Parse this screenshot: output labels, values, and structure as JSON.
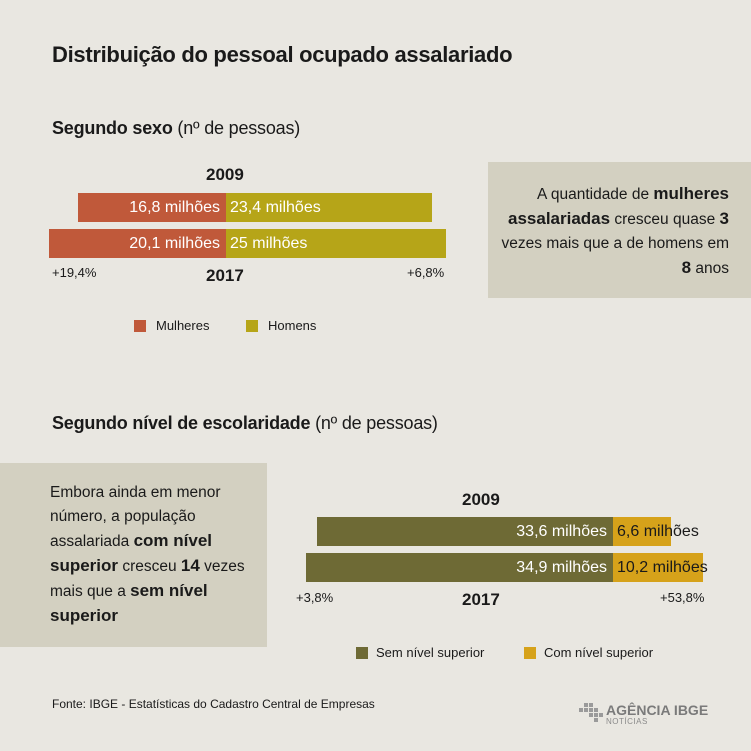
{
  "title": "Distribuição do pessoal ocupado assalariado",
  "section1": {
    "heading_bold": "Segundo sexo",
    "heading_rest": " (nº de pessoas)",
    "note_parts": [
      "A quantidade de ",
      "mulheres assalariadas",
      " cresceu quase ",
      "3",
      " vezes mais que a de homens em ",
      "8",
      " anos"
    ],
    "legend": [
      {
        "label": "Mulheres",
        "color": "#c0593a"
      },
      {
        "label": "Homens",
        "color": "#b6a518"
      }
    ]
  },
  "section2": {
    "heading_bold": "Segundo nível de escolaridade",
    "heading_rest": " (nº de pessoas)",
    "note_parts": [
      "Embora ainda em menor número, a população assalariada ",
      "com nível superior",
      " cresceu ",
      "14",
      " vezes mais que a ",
      "sem nível superior"
    ],
    "legend": [
      {
        "label": "Sem nível superior",
        "color": "#6e6a35"
      },
      {
        "label": "Com nível superior",
        "color": "#d6a21a"
      }
    ]
  },
  "chart_data": [
    {
      "type": "bar",
      "orientation": "horizontal-stacked",
      "title": "Segundo sexo",
      "categories": [
        "2009",
        "2017"
      ],
      "series": [
        {
          "name": "Mulheres",
          "values": [
            16.8,
            20.1
          ],
          "labels": [
            "16,8 milhões",
            "20,1 milhões"
          ],
          "color": "#c0593a"
        },
        {
          "name": "Homens",
          "values": [
            23.4,
            25
          ],
          "labels": [
            "23,4 milhões",
            "25 milhões"
          ],
          "color": "#b6a518"
        }
      ],
      "growth": {
        "Mulheres": "+19,4%",
        "Homens": "+6,8%"
      }
    },
    {
      "type": "bar",
      "orientation": "horizontal-stacked",
      "title": "Segundo nível de escolaridade",
      "categories": [
        "2009",
        "2017"
      ],
      "series": [
        {
          "name": "Sem nível superior",
          "values": [
            33.6,
            34.9
          ],
          "labels": [
            "33,6 milhões",
            "34,9 milhões"
          ],
          "color": "#6e6a35"
        },
        {
          "name": "Com nível superior",
          "values": [
            6.6,
            10.2
          ],
          "labels": [
            "6,6 milhões",
            "10,2 milhões"
          ],
          "color": "#d6a21a"
        }
      ],
      "growth": {
        "Sem nível superior": "+3,8%",
        "Com nível superior": "+53,8%"
      }
    }
  ],
  "source": "Fonte: IBGE - Estatísticas do Cadastro Central de Empresas",
  "logo": {
    "main": "AGÊNCIA IBGE",
    "sub": "NOTÍCIAS"
  }
}
